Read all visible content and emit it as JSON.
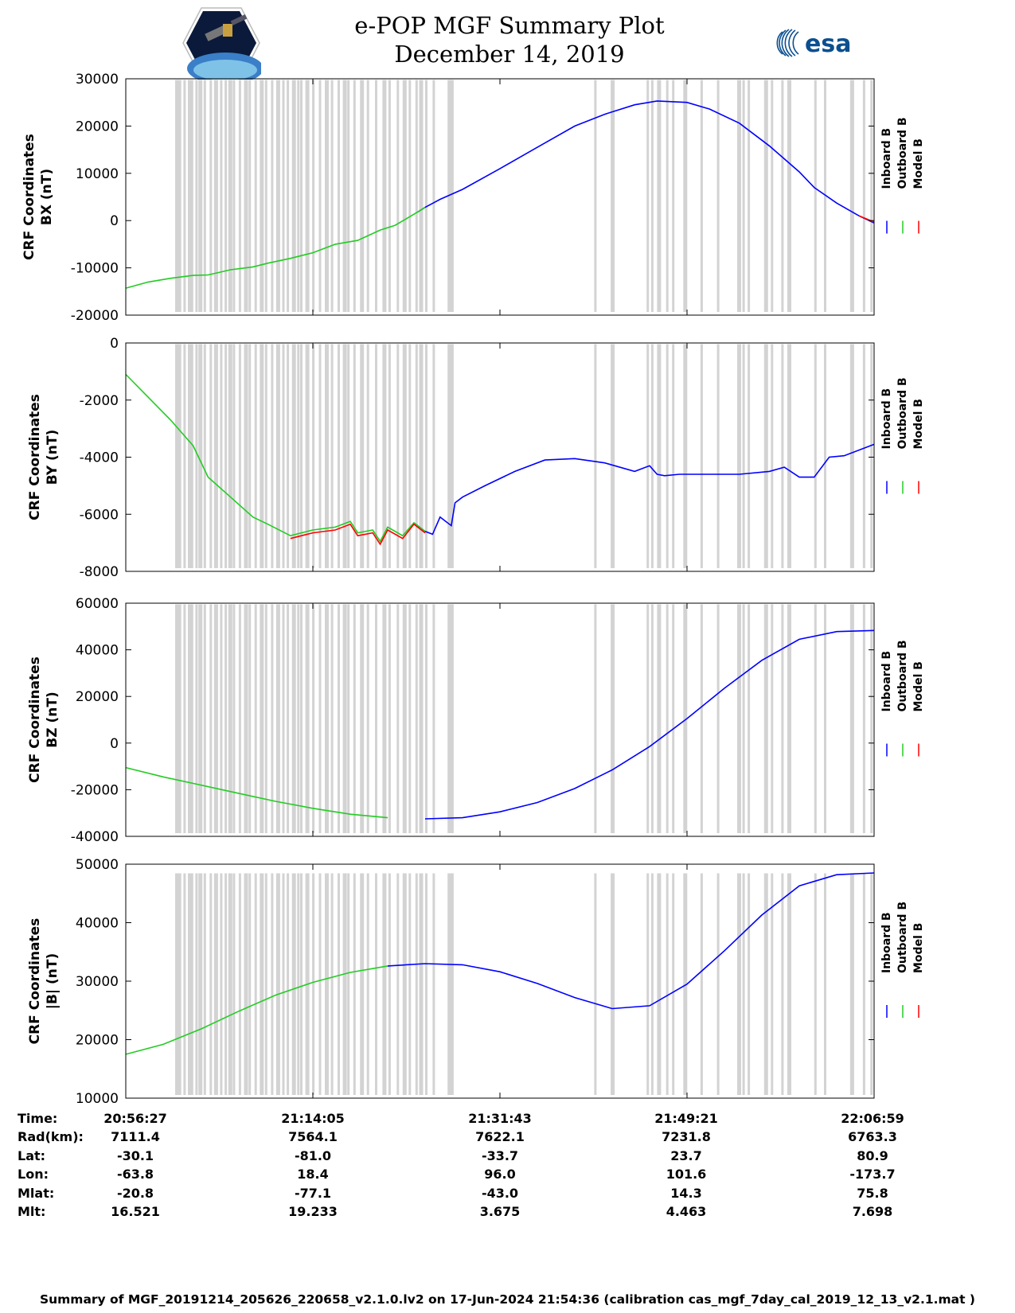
{
  "title": {
    "line1": "e-POP MGF Summary Plot",
    "line2": "December 14, 2019"
  },
  "logos": {
    "right": "esa",
    "left": "cassiope-satellite-logo"
  },
  "colors": {
    "inboard": "#0000ff",
    "outboard": "#22cc22",
    "model": "#ff0000",
    "gap": "#d3d3d3"
  },
  "legend": [
    "Inboard B",
    "Outboard B",
    "Model B"
  ],
  "chart_data": [
    {
      "type": "line",
      "title": "",
      "ylabel_line1": "CRF Coordinates",
      "ylabel_line2": "BX (nT)",
      "ylim": [
        -20000,
        30000
      ],
      "yticks": [
        -20000,
        -10000,
        0,
        10000,
        20000,
        30000
      ],
      "xtick_labels": [
        "20:56:27",
        "21:14:05",
        "21:31:43",
        "21:49:21",
        "22:06:59"
      ],
      "x": [
        0,
        0.03,
        0.06,
        0.09,
        0.11,
        0.14,
        0.17,
        0.19,
        0.22,
        0.25,
        0.28,
        0.31,
        0.34,
        0.36,
        0.39,
        0.4,
        0.42,
        0.45,
        0.5,
        0.55,
        0.6,
        0.64,
        0.68,
        0.71,
        0.75,
        0.78,
        0.82,
        0.86,
        0.9,
        0.92,
        0.95,
        0.98,
        1.0
      ],
      "series": [
        {
          "name": "Inboard B",
          "segment": [
            0.39,
            1.0
          ],
          "values": [
            -14300,
            -13000,
            -12200,
            -11600,
            -11500,
            -10400,
            -9800,
            -9000,
            -8000,
            -6800,
            -5000,
            -4200,
            -2000,
            -1000,
            1800,
            2800,
            4500,
            6600,
            11000,
            15500,
            20000,
            22500,
            24500,
            25300,
            25000,
            23600,
            20600,
            15800,
            10300,
            7000,
            3700,
            1000,
            -500
          ]
        },
        {
          "name": "Outboard B",
          "segment": [
            0.0,
            0.41
          ],
          "values": [
            -14300,
            -13000,
            -12200,
            -11600,
            -11500,
            -10400,
            -9800,
            -9000,
            -8000,
            -6800,
            -5000,
            -4200,
            -2000,
            -1000,
            1800,
            2800,
            4500,
            6600,
            11000,
            15500,
            20000,
            22500,
            24500,
            25300,
            25000,
            23600,
            20600,
            15800,
            10300,
            7000,
            3700,
            1000,
            -500
          ]
        },
        {
          "name": "Model B",
          "segment": [
            0.97,
            1.0
          ],
          "values": [
            -14300,
            -13000,
            -12200,
            -11600,
            -11500,
            -10400,
            -9800,
            -9000,
            -8000,
            -6800,
            -5000,
            -4200,
            -2000,
            -1000,
            1800,
            2800,
            4500,
            6600,
            11000,
            15500,
            20000,
            22500,
            24500,
            25300,
            25000,
            23600,
            20600,
            15800,
            10300,
            7000,
            3700,
            1000,
            -300
          ]
        }
      ]
    },
    {
      "type": "line",
      "title": "",
      "ylabel_line1": "CRF Coordinates",
      "ylabel_line2": "BY (nT)",
      "ylim": [
        -8000,
        0
      ],
      "yticks": [
        -8000,
        -6000,
        -4000,
        -2000,
        0
      ],
      "xtick_labels": [
        "20:56:27",
        "21:14:05",
        "21:31:43",
        "21:49:21",
        "22:06:59"
      ],
      "x": [
        0,
        0.03,
        0.06,
        0.09,
        0.11,
        0.14,
        0.17,
        0.19,
        0.22,
        0.25,
        0.28,
        0.3,
        0.31,
        0.33,
        0.34,
        0.35,
        0.37,
        0.385,
        0.4,
        0.41,
        0.42,
        0.435,
        0.44,
        0.45,
        0.48,
        0.52,
        0.56,
        0.6,
        0.64,
        0.68,
        0.7,
        0.71,
        0.72,
        0.74,
        0.78,
        0.82,
        0.86,
        0.88,
        0.9,
        0.92,
        0.94,
        0.96,
        1.0
      ],
      "series": [
        {
          "name": "Inboard B",
          "segment": [
            0.38,
            1.0
          ],
          "values": [
            -1100,
            -1900,
            -2700,
            -3600,
            -4700,
            -5400,
            -6100,
            -6400,
            -6800,
            -6600,
            -6500,
            -6300,
            -6700,
            -6600,
            -7000,
            -6500,
            -6800,
            -6300,
            -6600,
            -6700,
            -6100,
            -6400,
            -5600,
            -5400,
            -5000,
            -4500,
            -4100,
            -4050,
            -4200,
            -4500,
            -4300,
            -4600,
            -4650,
            -4600,
            -4600,
            -4600,
            -4500,
            -4350,
            -4700,
            -4700,
            -4000,
            -3950,
            -3550
          ]
        },
        {
          "name": "Outboard B",
          "segment": [
            0.0,
            0.4
          ],
          "values": [
            -1100,
            -1900,
            -2700,
            -3600,
            -4700,
            -5400,
            -6100,
            -6350,
            -6750,
            -6550,
            -6450,
            -6250,
            -6650,
            -6550,
            -6950,
            -6450,
            -6750,
            -6300,
            -6600,
            -6700,
            -6100,
            -6400,
            -5600,
            -5400,
            -5000,
            -4500,
            -4100,
            -4050,
            -4200,
            -4500,
            -4300,
            -4600,
            -4650,
            -4600,
            -4600,
            -4600,
            -4500,
            -4350,
            -4700,
            -4700,
            -4000,
            -3950,
            -3550
          ]
        },
        {
          "name": "Model B",
          "segment": [
            0.2,
            0.4
          ],
          "values": [
            -1100,
            -1900,
            -2700,
            -3600,
            -4700,
            -5400,
            -6100,
            -6450,
            -6850,
            -6650,
            -6550,
            -6350,
            -6750,
            -6650,
            -7050,
            -6550,
            -6850,
            -6350,
            -6650,
            -6750,
            -6100,
            -6400,
            -5600,
            -5400,
            -5000,
            -4500,
            -4100,
            -4050,
            -4200,
            -4500,
            -4300,
            -4600,
            -4650,
            -4600,
            -4600,
            -4600,
            -4500,
            -4350,
            -4700,
            -4700,
            -4000,
            -3900,
            -3500
          ]
        }
      ]
    },
    {
      "type": "line",
      "title": "",
      "ylabel_line1": "CRF Coordinates",
      "ylabel_line2": "BZ (nT)",
      "ylim": [
        -40000,
        60000
      ],
      "yticks": [
        -40000,
        -20000,
        0,
        20000,
        40000,
        60000
      ],
      "xtick_labels": [
        "20:56:27",
        "21:14:05",
        "21:31:43",
        "21:49:21",
        "22:06:59"
      ],
      "x": [
        0,
        0.05,
        0.1,
        0.15,
        0.2,
        0.25,
        0.3,
        0.35,
        0.4,
        0.45,
        0.5,
        0.55,
        0.6,
        0.65,
        0.7,
        0.75,
        0.8,
        0.85,
        0.9,
        0.95,
        1.0
      ],
      "series": [
        {
          "name": "Inboard B",
          "segment": [
            0.36,
            1.0
          ],
          "values": [
            -10500,
            -14500,
            -18000,
            -21500,
            -25000,
            -28000,
            -30500,
            -32000,
            -32500,
            -32000,
            -29500,
            -25500,
            -19500,
            -11500,
            -1500,
            10500,
            23500,
            35500,
            44500,
            47800,
            48300
          ]
        },
        {
          "name": "Outboard B",
          "segment": [
            0.0,
            0.38
          ],
          "values": [
            -10500,
            -14500,
            -18000,
            -21500,
            -25000,
            -28000,
            -30500,
            -32000,
            -32500,
            -32000,
            -29500,
            -25500,
            -19500,
            -11500,
            -1500,
            10500,
            23500,
            35500,
            44500,
            47800,
            48300
          ]
        },
        {
          "name": "Model B",
          "segment": [
            0.0,
            0.0
          ],
          "values": [
            -10500,
            -14500,
            -18000,
            -21500,
            -25000,
            -28000,
            -30500,
            -32000,
            -32500,
            -32000,
            -29500,
            -25500,
            -19500,
            -11500,
            -1500,
            10500,
            23500,
            35500,
            44500,
            47800,
            48300
          ]
        }
      ]
    },
    {
      "type": "line",
      "title": "",
      "ylabel_line1": "CRF Coordinates",
      "ylabel_line2": "|B| (nT)",
      "ylim": [
        10000,
        50000
      ],
      "yticks": [
        10000,
        20000,
        30000,
        40000,
        50000
      ],
      "xtick_labels": [
        "20:56:27",
        "21:14:05",
        "21:31:43",
        "21:49:21",
        "22:06:59"
      ],
      "x": [
        0,
        0.05,
        0.1,
        0.15,
        0.2,
        0.25,
        0.3,
        0.35,
        0.4,
        0.45,
        0.5,
        0.55,
        0.6,
        0.65,
        0.7,
        0.75,
        0.8,
        0.85,
        0.9,
        0.95,
        1.0
      ],
      "series": [
        {
          "name": "Inboard B",
          "segment": [
            0.34,
            1.0
          ],
          "values": [
            17500,
            19200,
            21800,
            24800,
            27600,
            29800,
            31500,
            32600,
            33000,
            32800,
            31600,
            29600,
            27200,
            25300,
            25800,
            29500,
            35200,
            41300,
            46300,
            48200,
            48500
          ]
        },
        {
          "name": "Outboard B",
          "segment": [
            0.0,
            0.36
          ],
          "values": [
            17500,
            19200,
            21800,
            24800,
            27600,
            29800,
            31500,
            32600,
            33000,
            32800,
            31600,
            29600,
            27200,
            25300,
            25800,
            29500,
            35200,
            41300,
            46300,
            48200,
            48500
          ]
        },
        {
          "name": "Model B",
          "segment": [
            0.0,
            0.0
          ],
          "values": [
            17500,
            19200,
            21800,
            24800,
            27600,
            29800,
            31500,
            32600,
            33000,
            32800,
            31600,
            29600,
            27200,
            25300,
            25800,
            29500,
            35200,
            41300,
            46300,
            48200,
            48500
          ]
        }
      ]
    }
  ],
  "gap_bands": [
    0.066,
    0.071,
    0.077,
    0.083,
    0.087,
    0.093,
    0.097,
    0.104,
    0.112,
    0.118,
    0.126,
    0.132,
    0.137,
    0.143,
    0.151,
    0.158,
    0.164,
    0.172,
    0.179,
    0.186,
    0.194,
    0.201,
    0.209,
    0.215,
    0.222,
    0.229,
    0.233,
    0.24,
    0.249,
    0.258,
    0.266,
    0.274,
    0.283,
    0.29,
    0.296,
    0.304,
    0.313,
    0.322,
    0.333,
    0.343,
    0.351,
    0.362,
    0.37,
    0.378,
    0.387,
    0.392,
    0.4,
    0.41,
    0.43,
    0.435,
    0.626,
    0.648,
    0.696,
    0.702,
    0.71,
    0.722,
    0.73,
    0.745,
    0.768,
    0.79,
    0.817,
    0.824,
    0.831,
    0.853,
    0.862,
    0.876,
    0.884,
    0.92,
    0.933,
    0.968,
    0.985,
    0.995
  ],
  "info_table": {
    "labels": [
      "Time:",
      "Rad(km):",
      "Lat:",
      "Lon:",
      "Mlat:",
      "Mlt:"
    ],
    "columns": [
      [
        "20:56:27",
        "7111.4",
        "-30.1",
        "-63.8",
        "-20.8",
        "16.521"
      ],
      [
        "21:14:05",
        "7564.1",
        "-81.0",
        "18.4",
        "-77.1",
        "19.233"
      ],
      [
        "21:31:43",
        "7622.1",
        "-33.7",
        "96.0",
        "-43.0",
        "3.675"
      ],
      [
        "21:49:21",
        "7231.8",
        "23.7",
        "101.6",
        "14.3",
        "4.463"
      ],
      [
        "22:06:59",
        "6763.3",
        "80.9",
        "-173.7",
        "75.8",
        "7.698"
      ]
    ]
  },
  "footer": "Summary of MGF_20191214_205626_220658_v2.1.0.lv2 on 17-Jun-2024 21:54:36 (calibration cas_mgf_7day_cal_2019_12_13_v2.1.mat )"
}
